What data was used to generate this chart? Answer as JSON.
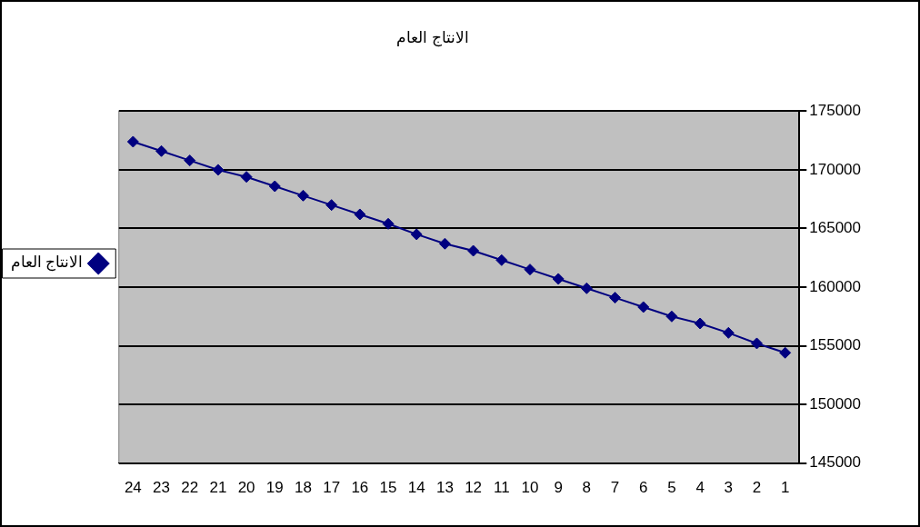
{
  "chart_data": {
    "type": "line",
    "title": "الانتاج العام",
    "categories": [
      "24",
      "23",
      "22",
      "21",
      "20",
      "19",
      "18",
      "17",
      "16",
      "15",
      "14",
      "13",
      "12",
      "11",
      "10",
      "9",
      "8",
      "7",
      "6",
      "5",
      "4",
      "3",
      "2",
      "1"
    ],
    "series": [
      {
        "name": "الانتاج العام",
        "color": "#000080",
        "values": [
          172400,
          171600,
          170800,
          170000,
          169400,
          168600,
          167800,
          167000,
          166200,
          165400,
          164500,
          163700,
          163100,
          162300,
          161500,
          160700,
          159900,
          159100,
          158300,
          157500,
          156900,
          156100,
          155200,
          154400
        ]
      }
    ],
    "ylim": [
      145000,
      175000
    ],
    "yticks": [
      145000,
      150000,
      155000,
      160000,
      165000,
      170000,
      175000
    ],
    "grid": "y",
    "legend": "left",
    "marker": "diamond",
    "line_style": "solid"
  }
}
